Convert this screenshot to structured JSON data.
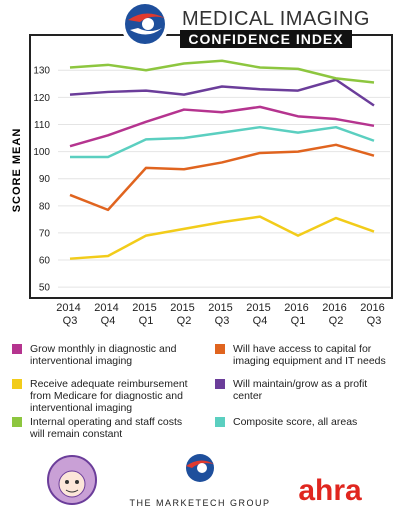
{
  "header": {
    "title": "MEDICAL IMAGING",
    "subtitle": "CONFIDENCE INDEX"
  },
  "chart_data": {
    "type": "line",
    "ylabel": "SCORE MEAN",
    "categories": [
      "2014 Q3",
      "2014 Q4",
      "2015 Q1",
      "2015 Q2",
      "2015 Q3",
      "2015 Q4",
      "2016 Q1",
      "2016 Q2",
      "2016 Q3"
    ],
    "ylim": [
      46,
      143
    ],
    "yticks": [
      50,
      60,
      70,
      80,
      90,
      100,
      110,
      120,
      130
    ],
    "grid": true,
    "series": [
      {
        "name": "Grow monthly in diagnostic and interventional imaging",
        "color": "#b5348f",
        "values": [
          102,
          106,
          111,
          115.5,
          114.5,
          116.5,
          113,
          112,
          109.5
        ]
      },
      {
        "name": "Will have access to capital for imaging equipment and IT needs",
        "color": "#e0641f",
        "values": [
          84,
          78.5,
          94,
          93.5,
          96,
          99.5,
          100,
          102.5,
          98.5
        ]
      },
      {
        "name": "Receive adequate reimbursement from Medicare for diagnostic and interventional imaging",
        "color": "#f2cc1a",
        "values": [
          60.5,
          61.5,
          69,
          71.5,
          74,
          76,
          69,
          75.5,
          70.5
        ]
      },
      {
        "name": "Will maintain/grow as a profit center",
        "color": "#6b3d9a",
        "values": [
          121,
          122,
          122.5,
          121,
          124,
          123,
          122.5,
          126.5,
          117
        ]
      },
      {
        "name": "Internal operating and staff costs will remain constant",
        "color": "#8dc63f",
        "values": [
          131,
          132,
          130,
          132.5,
          133.5,
          131,
          130.5,
          127,
          125.5
        ]
      },
      {
        "name": "Composite score, all areas",
        "color": "#5bcfc0",
        "values": [
          98,
          98,
          104.5,
          105,
          107,
          109,
          107,
          109,
          104
        ]
      }
    ]
  },
  "footer": {
    "company": "THE MARKETECH GROUP",
    "partner": "ahra"
  }
}
